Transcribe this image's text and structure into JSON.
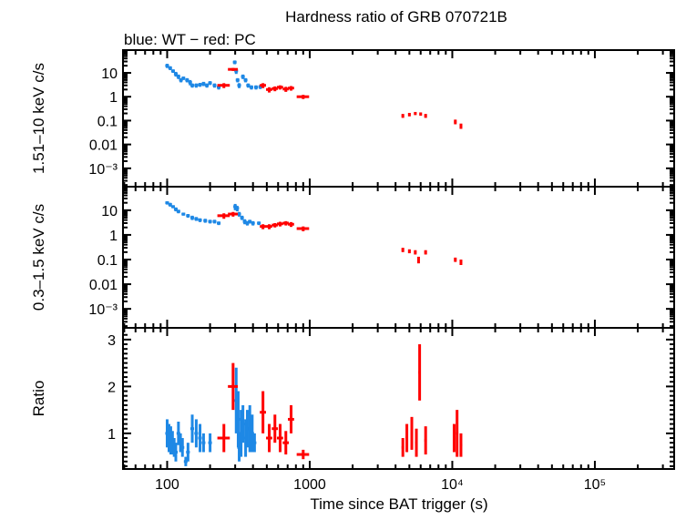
{
  "chart_data": {
    "type": "scatter",
    "title": "Hardness ratio of GRB 070721B",
    "subtitle": "blue: WT − red: PC",
    "xlabel": "Time since BAT trigger (s)",
    "xscale": "log",
    "xlim": [
      49,
      360000
    ],
    "xticks": [
      "100",
      "1000",
      "10⁴",
      "10⁵"
    ],
    "colors": {
      "WT": "#1e88e5",
      "PC": "#ff0000"
    },
    "panels": [
      {
        "ylabel": "1.51–10 keV c/s",
        "yscale": "log",
        "ylim": [
          0.00017,
          90
        ],
        "yticks": [
          "10",
          "1",
          "0.1",
          "0.01",
          "10⁻³"
        ],
        "series": [
          {
            "mode": "WT",
            "points": [
              [
                100,
                20,
                4
              ],
              [
                105,
                16,
                3
              ],
              [
                110,
                12,
                2
              ],
              [
                115,
                9,
                2
              ],
              [
                120,
                7,
                1.5
              ],
              [
                125,
                5,
                1
              ],
              [
                130,
                6,
                1
              ],
              [
                138,
                5,
                1
              ],
              [
                145,
                4,
                1
              ],
              [
                150,
                3,
                0.6
              ],
              [
                160,
                3,
                0.6
              ],
              [
                170,
                3.2,
                0.6
              ],
              [
                180,
                3.5,
                0.7
              ],
              [
                190,
                3,
                0.6
              ],
              [
                200,
                3.8,
                0.7
              ],
              [
                215,
                3,
                0.6
              ],
              [
                230,
                2.5,
                0.5
              ],
              [
                298,
                28,
                5
              ],
              [
                305,
                12,
                3
              ],
              [
                312,
                5,
                1
              ],
              [
                320,
                3,
                0.7
              ],
              [
                340,
                7,
                1.5
              ],
              [
                355,
                5,
                1
              ],
              [
                370,
                3,
                0.6
              ],
              [
                390,
                2.5,
                0.5
              ],
              [
                420,
                2.5,
                0.5
              ],
              [
                450,
                2.6,
                0.5
              ]
            ],
            "xerr": 0.03
          },
          {
            "mode": "PC",
            "points": [
              [
                250,
                3,
                0.7,
                0.1
              ],
              [
                290,
                14,
                2,
                0.08
              ],
              [
                470,
                3,
                0.7,
                0.05
              ],
              [
                520,
                2,
                0.5,
                0.05
              ],
              [
                570,
                2.2,
                0.5,
                0.05
              ],
              [
                620,
                2.5,
                0.5,
                0.05
              ],
              [
                680,
                2.1,
                0.5,
                0.05
              ],
              [
                740,
                2.3,
                0.5,
                0.05
              ],
              [
                900,
                1,
                0.2,
                0.1
              ],
              [
                4500,
                0.16,
                0.03,
                0.02
              ],
              [
                5000,
                0.18,
                0.03,
                0.02
              ],
              [
                5500,
                0.2,
                0.03,
                0.02
              ],
              [
                6000,
                0.19,
                0.03,
                0.02
              ],
              [
                6500,
                0.16,
                0.03,
                0.02
              ],
              [
                10500,
                0.09,
                0.02,
                0.02
              ],
              [
                11500,
                0.06,
                0.015,
                0.02
              ]
            ]
          }
        ]
      },
      {
        "ylabel": "0.3–1.5 keV c/s",
        "yscale": "log",
        "ylim": [
          0.00017,
          90
        ],
        "yticks": [
          "10",
          "1",
          "0.1",
          "0.01",
          "10⁻³"
        ],
        "series": [
          {
            "mode": "WT",
            "points": [
              [
                100,
                20,
                3
              ],
              [
                105,
                17,
                3
              ],
              [
                110,
                14,
                2
              ],
              [
                115,
                11,
                2
              ],
              [
                120,
                9,
                1.5
              ],
              [
                130,
                7,
                1
              ],
              [
                140,
                6,
                1
              ],
              [
                150,
                5,
                1
              ],
              [
                160,
                4.5,
                0.8
              ],
              [
                170,
                4,
                0.7
              ],
              [
                185,
                3.8,
                0.7
              ],
              [
                200,
                3.5,
                0.6
              ],
              [
                215,
                3.5,
                0.6
              ],
              [
                230,
                3,
                0.5
              ],
              [
                300,
                14,
                4
              ],
              [
                310,
                12,
                3
              ],
              [
                320,
                7,
                1.5
              ],
              [
                335,
                5,
                1
              ],
              [
                350,
                3.5,
                0.8
              ],
              [
                365,
                3,
                0.6
              ],
              [
                380,
                3.5,
                0.6
              ],
              [
                400,
                3,
                0.6
              ],
              [
                440,
                3,
                0.5
              ]
            ],
            "xerr": 0.03
          },
          {
            "mode": "PC",
            "points": [
              [
                250,
                6,
                1.5,
                0.1
              ],
              [
                290,
                7,
                1.5,
                0.08
              ],
              [
                470,
                2.2,
                0.5,
                0.05
              ],
              [
                520,
                2.2,
                0.5,
                0.05
              ],
              [
                570,
                2.5,
                0.5,
                0.05
              ],
              [
                620,
                2.8,
                0.6,
                0.05
              ],
              [
                680,
                3,
                0.6,
                0.05
              ],
              [
                740,
                2.7,
                0.6,
                0.05
              ],
              [
                900,
                1.8,
                0.4,
                0.1
              ],
              [
                4500,
                0.25,
                0.05,
                0.02
              ],
              [
                5000,
                0.22,
                0.04,
                0.02
              ],
              [
                5500,
                0.2,
                0.04,
                0.02
              ],
              [
                5800,
                0.1,
                0.03,
                0.01
              ],
              [
                6500,
                0.2,
                0.04,
                0.02
              ],
              [
                10500,
                0.1,
                0.02,
                0.02
              ],
              [
                11500,
                0.08,
                0.02,
                0.02
              ]
            ]
          }
        ]
      },
      {
        "ylabel": "Ratio",
        "yscale": "linear",
        "ylim": [
          0.24,
          3.25
        ],
        "yticks": [
          "1",
          "2",
          "3"
        ],
        "ytickvals": [
          1,
          2,
          3
        ],
        "series": [
          {
            "mode": "WT",
            "points": [
              [
                100,
                1,
                0.3
              ],
              [
                103,
                0.9,
                0.3
              ],
              [
                106,
                0.85,
                0.3
              ],
              [
                109,
                0.8,
                0.25
              ],
              [
                112,
                0.7,
                0.2
              ],
              [
                115,
                0.6,
                0.2
              ],
              [
                120,
                1,
                0.25
              ],
              [
                124,
                0.8,
                0.2
              ],
              [
                128,
                0.7,
                0.2
              ],
              [
                135,
                0.4,
                0.1
              ],
              [
                140,
                0.6,
                0.2
              ],
              [
                150,
                1.1,
                0.3
              ],
              [
                160,
                1,
                0.3
              ],
              [
                170,
                0.9,
                0.3
              ],
              [
                180,
                0.8,
                0.2
              ],
              [
                200,
                0.8,
                0.2
              ],
              [
                305,
                1.7,
                0.7
              ],
              [
                315,
                1.3,
                0.6
              ],
              [
                320,
                0.7,
                0.3
              ],
              [
                330,
                1,
                0.5
              ],
              [
                340,
                1.2,
                0.4
              ],
              [
                355,
                0.9,
                0.4
              ],
              [
                365,
                1.1,
                0.4
              ],
              [
                380,
                1.1,
                0.5
              ],
              [
                395,
                1,
                0.4
              ],
              [
                410,
                0.8,
                0.2
              ]
            ],
            "xerr": 0.03
          },
          {
            "mode": "PC",
            "points": [
              [
                250,
                0.9,
                0.3,
                0.1
              ],
              [
                290,
                2,
                0.5,
                0.08
              ],
              [
                470,
                1.45,
                0.45,
                0.05
              ],
              [
                520,
                0.9,
                0.3,
                0.05
              ],
              [
                570,
                1.1,
                0.3,
                0.05
              ],
              [
                620,
                0.9,
                0.3,
                0.05
              ],
              [
                680,
                0.8,
                0.25,
                0.05
              ],
              [
                740,
                1.3,
                0.3,
                0.05
              ],
              [
                900,
                0.55,
                0.1,
                0.1
              ],
              [
                4500,
                0.7,
                0.2,
                0.02
              ],
              [
                4800,
                0.9,
                0.3,
                0.02
              ],
              [
                5200,
                1,
                0.35,
                0.02
              ],
              [
                5600,
                0.8,
                0.3,
                0.02
              ],
              [
                5900,
                2.3,
                0.6,
                0.02
              ],
              [
                6500,
                0.85,
                0.3,
                0.02
              ],
              [
                10300,
                0.9,
                0.3,
                0.02
              ],
              [
                10800,
                1,
                0.5,
                0.02
              ],
              [
                11500,
                0.75,
                0.25,
                0.02
              ]
            ]
          }
        ]
      }
    ]
  }
}
